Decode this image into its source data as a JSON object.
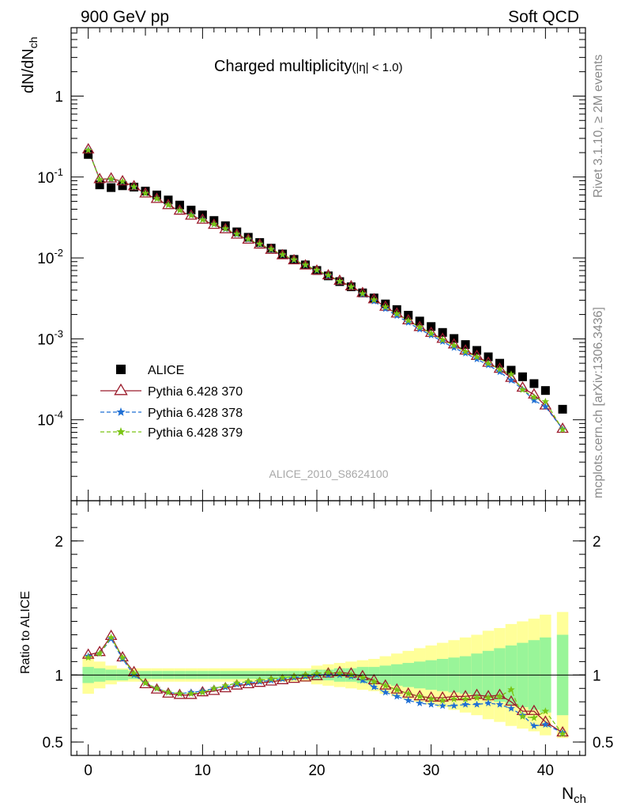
{
  "header": {
    "left": "900 GeV pp",
    "right": "Soft QCD",
    "analysis": "ALICE_2010_S8624100",
    "rivet": "Rivet 3.1.10, ≥ 2M events",
    "source": "mcplots.cern.ch [arXiv:1306.3436]"
  },
  "main_plot": {
    "title": "Charged multiplicity",
    "title_cut": "(|η| < 1.0)",
    "ylabel": "dN/dN",
    "ylabel_sub": "ch",
    "yscale": "log",
    "ylim": [
      1e-05,
      7
    ],
    "yticks": [
      {
        "mant": "10",
        "exp": "-4",
        "value": 0.0001
      },
      {
        "mant": "10",
        "exp": "-3",
        "value": 0.001
      },
      {
        "mant": "10",
        "exp": "-2",
        "value": 0.01
      },
      {
        "mant": "10",
        "exp": "-1",
        "value": 0.1
      },
      {
        "mant": "1",
        "exp": "",
        "value": 1
      }
    ]
  },
  "ratio_plot": {
    "ylabel": "Ratio to ALICE",
    "ylim": [
      0.4,
      2.3
    ],
    "yticks": [
      {
        "label": "0.5",
        "value": 0.5
      },
      {
        "label": "1",
        "value": 1
      },
      {
        "label": "2",
        "value": 2
      }
    ]
  },
  "xaxis": {
    "label": "N",
    "label_sub": "ch",
    "xlim": [
      -1.5,
      43.5
    ],
    "ticks": [
      {
        "label": "0",
        "value": 0
      },
      {
        "label": "10",
        "value": 10
      },
      {
        "label": "20",
        "value": 20
      },
      {
        "label": "30",
        "value": 30
      },
      {
        "label": "40",
        "value": 40
      }
    ]
  },
  "legend": [
    {
      "label": "ALICE",
      "color": "#000000",
      "marker": "square",
      "line": "none"
    },
    {
      "label": "Pythia 6.428 370",
      "color": "#9b1b2b",
      "marker": "triangle-open",
      "line": "solid"
    },
    {
      "label": "Pythia 6.428 378",
      "color": "#1f6fd4",
      "marker": "star",
      "line": "dashed"
    },
    {
      "label": "Pythia 6.428 379",
      "color": "#7ac414",
      "marker": "star",
      "line": "dashed"
    }
  ],
  "chart_data": {
    "type": "scatter",
    "title": "Charged multiplicity",
    "xlabel": "Nch",
    "ylabel": "dN/dNch",
    "data": {
      "x": [
        0,
        1,
        2,
        3,
        4,
        5,
        6,
        7,
        8,
        9,
        10,
        11,
        12,
        13,
        14,
        15,
        16,
        17,
        18,
        19,
        20,
        21,
        22,
        23,
        24,
        25,
        26,
        27,
        28,
        29,
        30,
        31,
        32,
        33,
        34,
        35,
        36,
        37,
        38,
        39,
        40,
        41.5
      ],
      "y": [
        0.19,
        0.08,
        0.074,
        0.078,
        0.075,
        0.067,
        0.06,
        0.052,
        0.045,
        0.039,
        0.034,
        0.029,
        0.025,
        0.021,
        0.018,
        0.0155,
        0.0132,
        0.0112,
        0.0096,
        0.0082,
        0.007,
        0.006,
        0.0051,
        0.0044,
        0.0037,
        0.0032,
        0.0027,
        0.0023,
        0.00196,
        0.00166,
        0.00142,
        0.0012,
        0.00101,
        0.00085,
        0.00072,
        0.0006,
        0.0005,
        0.00041,
        0.00034,
        0.00028,
        0.00023,
        0.000135
      ]
    },
    "series": [
      {
        "name": "Pythia 6.428 370",
        "ratio": [
          1.15,
          1.17,
          1.29,
          1.13,
          1.02,
          0.93,
          0.89,
          0.86,
          0.85,
          0.85,
          0.87,
          0.88,
          0.9,
          0.92,
          0.93,
          0.94,
          0.95,
          0.96,
          0.97,
          0.98,
          0.99,
          1.01,
          1.02,
          1.01,
          0.99,
          0.96,
          0.92,
          0.89,
          0.86,
          0.84,
          0.83,
          0.83,
          0.84,
          0.84,
          0.85,
          0.84,
          0.85,
          0.8,
          0.73,
          0.73,
          0.65,
          0.57
        ]
      },
      {
        "name": "Pythia 6.428 378",
        "ratio": [
          1.14,
          1.16,
          1.27,
          1.12,
          1.0,
          0.94,
          0.9,
          0.87,
          0.86,
          0.87,
          0.88,
          0.9,
          0.91,
          0.93,
          0.94,
          0.95,
          0.96,
          0.97,
          0.98,
          0.99,
          1.0,
          1.0,
          1.0,
          0.99,
          0.96,
          0.91,
          0.87,
          0.84,
          0.81,
          0.79,
          0.78,
          0.77,
          0.77,
          0.78,
          0.78,
          0.79,
          0.78,
          0.75,
          0.7,
          0.62,
          0.63,
          0.57
        ]
      },
      {
        "name": "Pythia 6.428 379",
        "ratio": [
          1.13,
          1.16,
          1.28,
          1.13,
          1.01,
          0.94,
          0.9,
          0.87,
          0.86,
          0.86,
          0.87,
          0.9,
          0.92,
          0.94,
          0.95,
          0.96,
          0.97,
          0.98,
          0.99,
          1.0,
          1.01,
          1.02,
          1.01,
          1.0,
          0.98,
          0.95,
          0.92,
          0.89,
          0.86,
          0.84,
          0.82,
          0.81,
          0.82,
          0.82,
          0.83,
          0.83,
          0.84,
          0.89,
          0.69,
          0.68,
          0.73,
          0.56
        ]
      }
    ],
    "ratio_bands": {
      "stat_half_width": [
        0.06,
        0.05,
        0.04,
        0.04,
        0.03,
        0.03,
        0.03,
        0.03,
        0.03,
        0.03,
        0.03,
        0.03,
        0.03,
        0.03,
        0.03,
        0.03,
        0.03,
        0.03,
        0.03,
        0.03,
        0.04,
        0.04,
        0.05,
        0.05,
        0.06,
        0.06,
        0.07,
        0.08,
        0.09,
        0.1,
        0.11,
        0.12,
        0.13,
        0.14,
        0.16,
        0.18,
        0.2,
        0.22,
        0.24,
        0.26,
        0.28,
        0.3
      ],
      "total_half_width": [
        0.14,
        0.1,
        0.07,
        0.05,
        0.05,
        0.05,
        0.05,
        0.05,
        0.05,
        0.05,
        0.05,
        0.05,
        0.05,
        0.05,
        0.05,
        0.05,
        0.05,
        0.05,
        0.05,
        0.05,
        0.07,
        0.08,
        0.09,
        0.1,
        0.11,
        0.12,
        0.14,
        0.16,
        0.18,
        0.2,
        0.22,
        0.24,
        0.26,
        0.28,
        0.3,
        0.33,
        0.35,
        0.38,
        0.4,
        0.42,
        0.45,
        0.47
      ]
    },
    "grid": false,
    "legend_position": "lower-left"
  }
}
